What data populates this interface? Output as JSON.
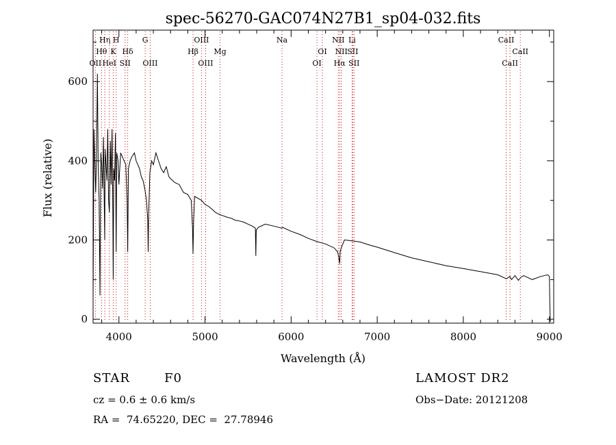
{
  "chart_data": {
    "type": "line",
    "title": "spec-56270-GAC074N27B1_sp04-032.fits",
    "xlabel": "Wavelength (Å)",
    "ylabel": "Flux (relative)",
    "xlim": [
      3700,
      9050
    ],
    "ylim": [
      -10,
      730
    ],
    "x_ticks": [
      4000,
      5000,
      6000,
      7000,
      8000,
      9000
    ],
    "y_ticks": [
      0,
      200,
      400,
      600
    ],
    "grid": false,
    "series": [
      {
        "x": [
          3700,
          3710,
          3720,
          3730,
          3740,
          3750,
          3760,
          3770,
          3780,
          3790,
          3800,
          3810,
          3820,
          3830,
          3835,
          3840,
          3850,
          3860,
          3870,
          3880,
          3889,
          3900,
          3910,
          3920,
          3930,
          3934,
          3940,
          3950,
          3960,
          3968,
          3975,
          3990,
          4000,
          4010,
          4020,
          4040,
          4060,
          4080,
          4095,
          4102,
          4110,
          4130,
          4150,
          4180,
          4200,
          4220,
          4240,
          4260,
          4280,
          4300,
          4320,
          4335,
          4340,
          4345,
          4360,
          4380,
          4400,
          4430,
          4460,
          4490,
          4520,
          4550,
          4580,
          4600,
          4650,
          4700,
          4750,
          4800,
          4840,
          4855,
          4861,
          4868,
          4880,
          4920,
          4960,
          5000,
          5040,
          5080,
          5120,
          5160,
          5200,
          5250,
          5300,
          5350,
          5400,
          5450,
          5500,
          5550,
          5585,
          5590,
          5595,
          5620,
          5700,
          5800,
          5890,
          5900,
          6000,
          6100,
          6200,
          6300,
          6400,
          6500,
          6540,
          6555,
          6563,
          6570,
          6585,
          6620,
          6700,
          6800,
          6900,
          7000,
          7200,
          7400,
          7600,
          7800,
          8000,
          8200,
          8400,
          8500,
          8540,
          8560,
          8600,
          8640,
          8665,
          8700,
          8800,
          8900,
          8980,
          9000,
          9005,
          9010,
          9020
        ],
        "y": [
          50,
          480,
          400,
          320,
          410,
          620,
          380,
          300,
          60,
          420,
          390,
          330,
          460,
          280,
          200,
          430,
          390,
          350,
          480,
          300,
          270,
          450,
          340,
          480,
          260,
          100,
          380,
          350,
          470,
          170,
          420,
          400,
          340,
          380,
          420,
          410,
          400,
          390,
          300,
          170,
          380,
          400,
          410,
          420,
          400,
          390,
          380,
          360,
          350,
          330,
          300,
          250,
          170,
          260,
          370,
          400,
          390,
          420,
          400,
          380,
          370,
          385,
          360,
          355,
          345,
          340,
          320,
          315,
          300,
          230,
          165,
          250,
          310,
          305,
          300,
          290,
          285,
          278,
          270,
          265,
          262,
          258,
          255,
          250,
          248,
          245,
          240,
          235,
          230,
          160,
          225,
          232,
          240,
          235,
          230,
          232,
          222,
          214,
          204,
          196,
          190,
          180,
          170,
          155,
          140,
          170,
          182,
          200,
          198,
          195,
          188,
          182,
          168,
          155,
          145,
          135,
          128,
          120,
          112,
          102,
          108,
          100,
          110,
          98,
          105,
          110,
          100,
          108,
          112,
          108,
          40,
          -5,
          -5
        ]
      }
    ],
    "annotations": [
      {
        "label": "OII",
        "x": 3727,
        "row": 3
      },
      {
        "label": "Hθ",
        "x": 3798,
        "row": 2
      },
      {
        "label": "Hη",
        "x": 3836,
        "row": 1
      },
      {
        "label": "HeI",
        "x": 3889,
        "row": 3
      },
      {
        "label": "K",
        "x": 3934,
        "row": 2
      },
      {
        "label": "H",
        "x": 3968,
        "row": 1
      },
      {
        "label": "SII",
        "x": 4072,
        "row": 3
      },
      {
        "label": "Hδ",
        "x": 4102,
        "row": 2
      },
      {
        "label": "G",
        "x": 4305,
        "row": 1
      },
      {
        "label": "OIII",
        "x": 4363,
        "row": 3
      },
      {
        "label": "Hβ",
        "x": 4861,
        "row": 2
      },
      {
        "label": "OIII",
        "x": 4959,
        "row": 1
      },
      {
        "label": "OIII",
        "x": 5007,
        "row": 3
      },
      {
        "label": "Mg",
        "x": 5175,
        "row": 2
      },
      {
        "label": "Na",
        "x": 5894,
        "row": 1
      },
      {
        "label": "OI",
        "x": 6300,
        "row": 3
      },
      {
        "label": "OI",
        "x": 6363,
        "row": 2
      },
      {
        "label": "NII",
        "x": 6548,
        "row": 1
      },
      {
        "label": "Hα",
        "x": 6563,
        "row": 3
      },
      {
        "label": "NII",
        "x": 6583,
        "row": 2
      },
      {
        "label": "Li",
        "x": 6708,
        "row": 1
      },
      {
        "label": "SII",
        "x": 6716,
        "row": 2
      },
      {
        "label": "SII",
        "x": 6731,
        "row": 3
      },
      {
        "label": "CaII",
        "x": 8498,
        "row": 1
      },
      {
        "label": "CaII",
        "x": 8542,
        "row": 3
      },
      {
        "label": "CaII",
        "x": 8662,
        "row": 2
      }
    ],
    "marker_color": "#cc0000"
  },
  "info": {
    "class": "STAR",
    "subclass": "F0",
    "survey": "LAMOST DR2",
    "cz": "cz = 0.6 ± 0.6 km/s",
    "obsdate": "Obs−Date: 20121208",
    "radec": "RA =  74.65220, DEC =  27.78946"
  }
}
